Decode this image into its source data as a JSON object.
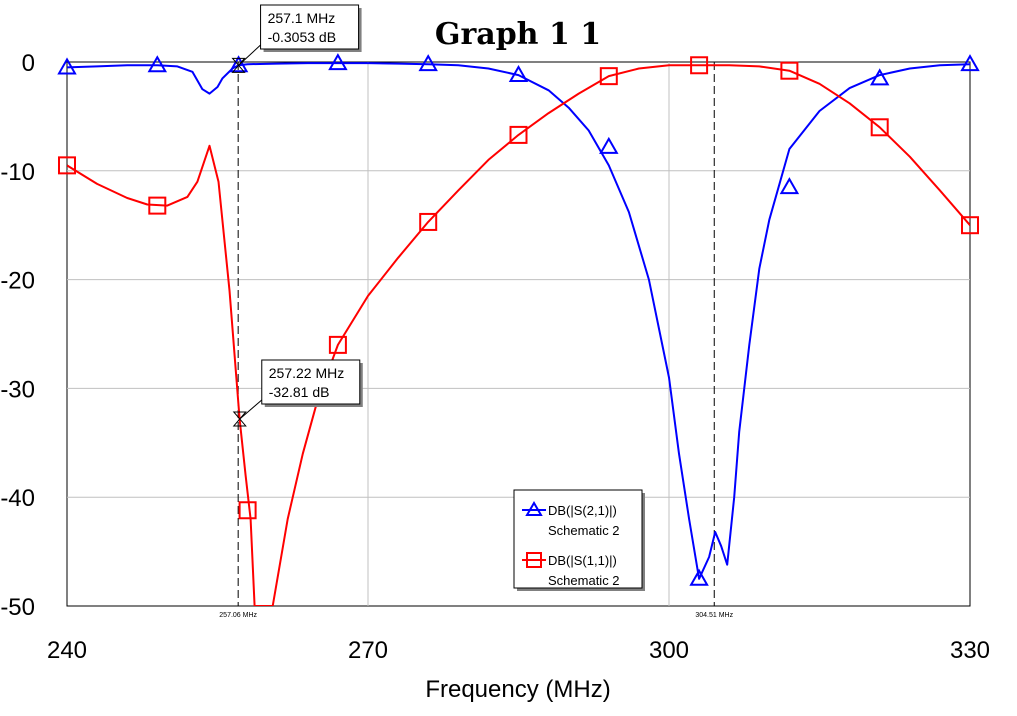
{
  "chart_data": {
    "type": "line",
    "title": "Graph 1 1",
    "xlabel": "Frequency (MHz)",
    "ylabel": "",
    "xlim": [
      240,
      330
    ],
    "ylim": [
      -50,
      0
    ],
    "x_ticks": [
      "240",
      "270",
      "300",
      "330"
    ],
    "y_ticks": [
      "0",
      "-10",
      "-20",
      "-30",
      "-40",
      "-50"
    ],
    "grid": true,
    "legend_position": "bottom-center",
    "series": [
      {
        "name": "DB(|S(2,1)|)",
        "subname": "Schematic 2",
        "color": "#0000ff",
        "marker": "triangle",
        "x": [
          240,
          243,
          246,
          249,
          251,
          252.5,
          253.5,
          254.2,
          255,
          255.5,
          256.5,
          257.1,
          258,
          261,
          264,
          267,
          270,
          273,
          276,
          279,
          282,
          285,
          288,
          290,
          292,
          294,
          296,
          298,
          300,
          301,
          302,
          303,
          304,
          304.6,
          305.2,
          305.8,
          306.5,
          307,
          308,
          309,
          310,
          312,
          315,
          318,
          321,
          324,
          327,
          330
        ],
        "y": [
          -0.5,
          -0.4,
          -0.3,
          -0.3,
          -0.4,
          -0.9,
          -2.5,
          -2.9,
          -2.3,
          -1.5,
          -0.6,
          -0.3,
          -0.2,
          -0.15,
          -0.1,
          -0.1,
          -0.1,
          -0.15,
          -0.2,
          -0.3,
          -0.6,
          -1.2,
          -2.6,
          -4.2,
          -6.3,
          -9.5,
          -13.8,
          -20,
          -29,
          -36,
          -42,
          -47.5,
          -45.5,
          -43.2,
          -44.5,
          -46.2,
          -40,
          -34,
          -26,
          -19,
          -14.5,
          -8,
          -4.5,
          -2.4,
          -1.2,
          -0.6,
          -0.3,
          -0.2
        ],
        "markers_x": [
          240,
          249,
          257.1,
          267,
          276,
          285,
          294,
          303,
          312,
          321,
          330
        ],
        "markers_y": [
          -0.5,
          -0.3,
          -0.3,
          -0.1,
          -0.2,
          -1.2,
          -7.8,
          -47.5,
          -11.5,
          -1.5,
          -0.2
        ]
      },
      {
        "name": "DB(|S(1,1)|)",
        "subname": "Schematic 2",
        "color": "#ff0000",
        "marker": "square",
        "x": [
          240,
          243,
          246,
          248,
          250,
          252,
          253,
          254.2,
          255.1,
          256.2,
          257.2,
          257.8,
          258.3,
          258.7,
          260.5,
          262,
          263.5,
          265,
          267,
          270,
          273,
          276,
          279,
          282,
          285,
          288,
          291,
          294,
          297,
          300,
          303,
          306,
          309,
          312,
          315,
          318,
          321,
          324,
          327,
          330
        ],
        "y": [
          -9.5,
          -11.2,
          -12.5,
          -13.1,
          -13.2,
          -12.4,
          -11,
          -7.7,
          -11,
          -21,
          -32.81,
          -38,
          -42,
          -50,
          -50,
          -42,
          -36,
          -31,
          -26,
          -21.5,
          -18,
          -14.7,
          -11.8,
          -9,
          -6.7,
          -4.7,
          -2.9,
          -1.3,
          -0.6,
          -0.3,
          -0.3,
          -0.3,
          -0.4,
          -0.8,
          -2,
          -3.8,
          -6,
          -8.7,
          -11.8,
          -15
        ],
        "markers_x": [
          240,
          249,
          258,
          267,
          276,
          285,
          294,
          303,
          312,
          321,
          330
        ],
        "markers_y": [
          -9.5,
          -13.2,
          -41.2,
          -26,
          -14.7,
          -6.7,
          -1.3,
          -0.3,
          -0.8,
          -6,
          -15
        ]
      }
    ],
    "markers": [
      {
        "x": 257.1,
        "y": -0.3053,
        "freq_text": "257.1 MHz",
        "val_text": "-0.3053 dB"
      },
      {
        "x": 257.22,
        "y": -32.81,
        "freq_text": "257.22 MHz",
        "val_text": "-32.81 dB"
      }
    ],
    "vlines": [
      {
        "x": 257.06,
        "label": "257.06 MHz"
      },
      {
        "x": 304.51,
        "label": "304.51 MHz"
      }
    ]
  }
}
